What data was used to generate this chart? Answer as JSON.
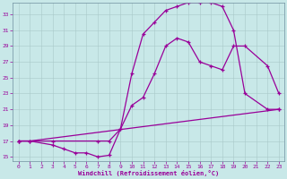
{
  "xlabel": "Windchill (Refroidissement éolien,°C)",
  "bg_color": "#c8e8e8",
  "line_color": "#990099",
  "xlim": [
    -0.5,
    23.5
  ],
  "ylim": [
    14.5,
    34.5
  ],
  "xticks": [
    0,
    1,
    2,
    3,
    4,
    5,
    6,
    7,
    8,
    9,
    10,
    11,
    12,
    13,
    14,
    15,
    16,
    17,
    18,
    19,
    20,
    21,
    22,
    23
  ],
  "yticks": [
    15,
    17,
    19,
    21,
    23,
    25,
    27,
    29,
    31,
    33
  ],
  "line1_x": [
    0,
    1,
    3,
    4,
    5,
    6,
    7,
    8,
    9,
    10,
    11,
    12,
    13,
    14,
    15,
    16,
    17,
    18,
    19,
    20,
    22,
    23
  ],
  "line1_y": [
    17,
    17,
    16.5,
    16,
    15.5,
    15.5,
    15,
    15.2,
    18.5,
    25.5,
    30.5,
    32,
    33.5,
    34,
    34.5,
    34.5,
    34.5,
    34,
    31,
    23,
    21,
    21
  ],
  "line2_x": [
    0,
    3,
    7,
    8,
    9,
    10,
    11,
    12,
    13,
    14,
    15,
    16,
    17,
    18,
    19,
    20,
    22,
    23
  ],
  "line2_y": [
    17,
    17,
    17,
    17,
    18.5,
    21.5,
    22.5,
    25.5,
    29,
    30,
    29.5,
    27,
    26.5,
    26,
    29,
    29,
    26.5,
    23
  ],
  "line3_x": [
    0,
    1,
    23
  ],
  "line3_y": [
    17,
    17,
    21
  ]
}
